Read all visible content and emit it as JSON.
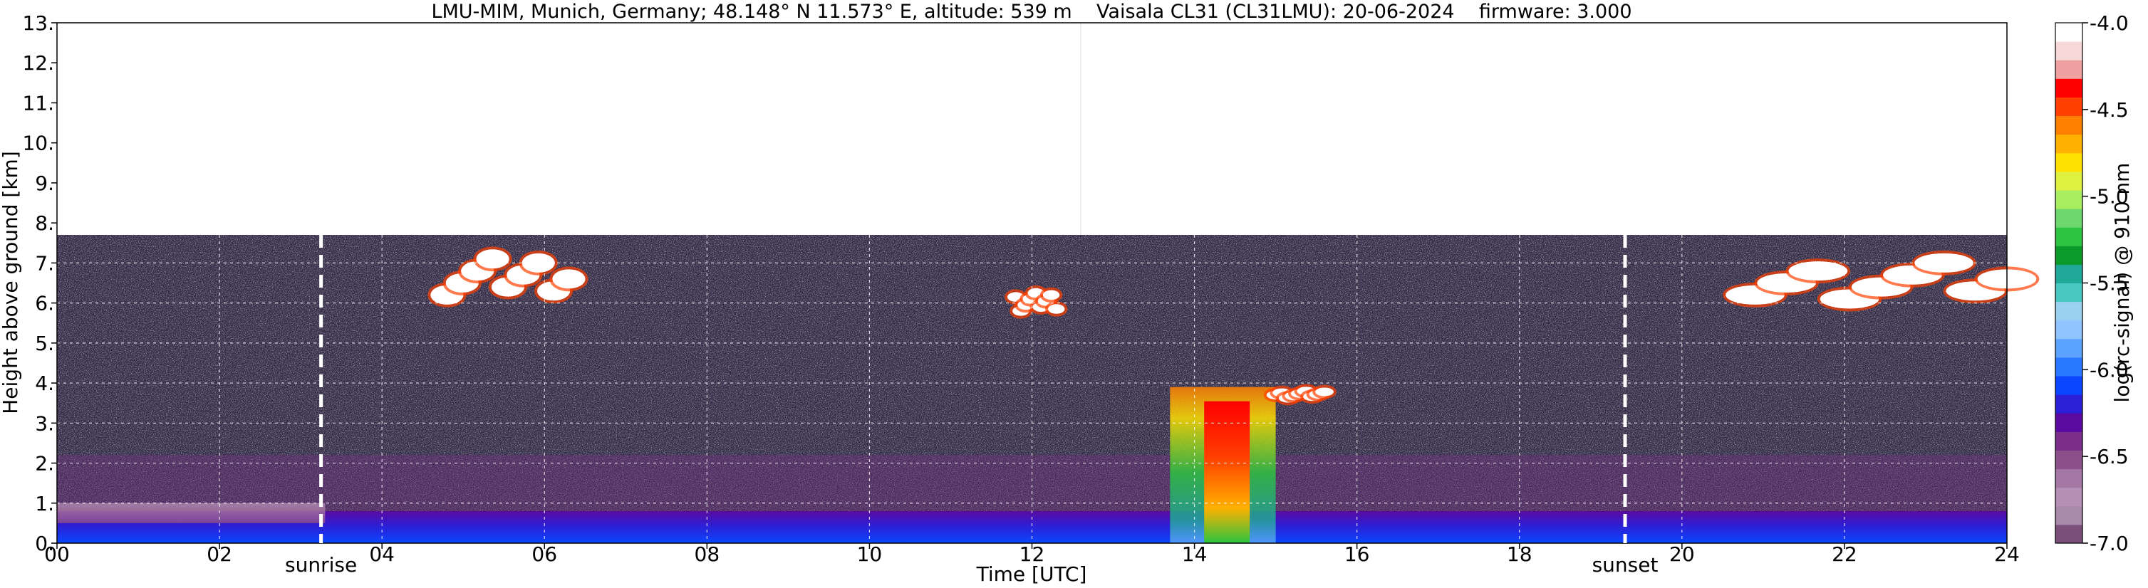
{
  "chart_data": {
    "type": "heatmap",
    "title": "LMU-MIM, Munich, Germany; 48.148° N 11.573° E, altitude: 539 m    Vaisala CL31 (CL31LMU): 20-06-2024    firmware: 3.000",
    "xlabel": "Time [UTC]",
    "ylabel": "Height above ground [km]",
    "xlim": [
      0,
      24
    ],
    "ylim": [
      0,
      13
    ],
    "x_ticks": [
      "00",
      "02",
      "04",
      "06",
      "08",
      "10",
      "12",
      "14",
      "16",
      "18",
      "20",
      "22",
      "24"
    ],
    "y_ticks": [
      "0.",
      "1.",
      "2.",
      "3.",
      "4.",
      "5.",
      "6.",
      "7.",
      "8.",
      "9.",
      "10.",
      "11.",
      "12.",
      "13."
    ],
    "grid": true,
    "data_top_km": 7.7,
    "annotations": [
      {
        "label": "sunrise",
        "x": 3.25
      },
      {
        "label": "sunset",
        "x": 19.3
      }
    ],
    "colorbar": {
      "label": "log(rc-signal) @ 910 nm",
      "range": [
        -7.0,
        -4.0
      ],
      "ticks": [
        "-7.0",
        "-6.5",
        "-6.0",
        "-5.5",
        "-5.0",
        "-4.5",
        "-4.0"
      ],
      "colors": [
        "#7a4f7a",
        "#a889a8",
        "#b68fb6",
        "#a577a5",
        "#8c4f8c",
        "#7b2f8b",
        "#5a0aa0",
        "#2d1fd5",
        "#0a46ff",
        "#2a78ff",
        "#5ca2ff",
        "#8fc4ff",
        "#9cd0f0",
        "#48c8c0",
        "#20a898",
        "#0a9a2a",
        "#2cc440",
        "#6ed86e",
        "#a8ee60",
        "#e0f040",
        "#ffe000",
        "#ffb000",
        "#ff8000",
        "#ff4000",
        "#ff0000",
        "#f0a0a0",
        "#f6d8d8",
        "#ffffff"
      ]
    },
    "features": [
      {
        "kind": "boundary-layer",
        "x": [
          0,
          24
        ],
        "y": [
          0,
          0.8
        ]
      },
      {
        "kind": "elevated-layer",
        "x": [
          0,
          3.3
        ],
        "y": [
          0.5,
          1.0
        ]
      },
      {
        "kind": "precipitation",
        "x": [
          13.7,
          15.0
        ],
        "y": [
          0,
          3.9
        ]
      },
      {
        "kind": "cloud",
        "x": [
          4.8,
          6.3
        ],
        "y": [
          5.6,
          7.6
        ]
      },
      {
        "kind": "cloud",
        "x": [
          11.8,
          12.3
        ],
        "y": [
          5.5,
          6.5
        ]
      },
      {
        "kind": "cloud",
        "x": [
          15.0,
          15.6
        ],
        "y": [
          3.5,
          3.9
        ]
      },
      {
        "kind": "cloud",
        "x": [
          20.9,
          24.0
        ],
        "y": [
          5.5,
          7.5
        ]
      }
    ]
  }
}
